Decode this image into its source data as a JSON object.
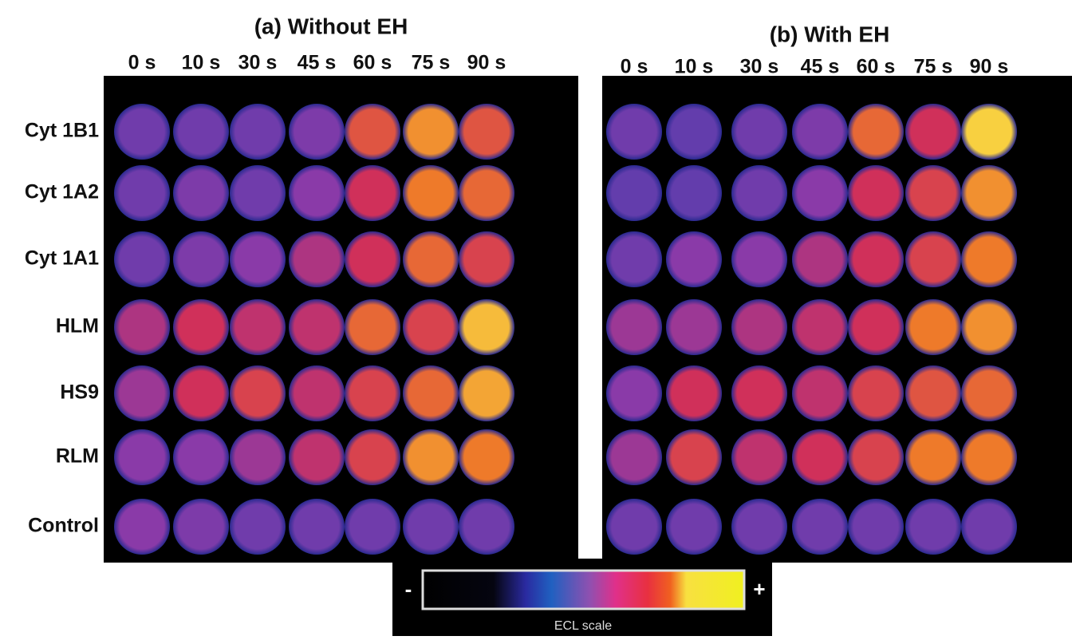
{
  "panels": [
    {
      "title": "(a) Without EH",
      "times": [
        "0 s",
        "10 s",
        "30 s",
        "45 s",
        "60 s",
        "75 s",
        "90 s"
      ]
    },
    {
      "title": "(b) With EH",
      "times": [
        "0 s",
        "10 s",
        "30 s",
        "45 s",
        "60 s",
        "75 s",
        "90 s"
      ]
    }
  ],
  "rows": [
    "Cyt 1B1",
    "Cyt 1A2",
    "Cyt 1A1",
    "HLM",
    "HS9",
    "RLM",
    "Control"
  ],
  "scale": {
    "min": "-",
    "max": "+",
    "label": "ECL scale"
  }
}
